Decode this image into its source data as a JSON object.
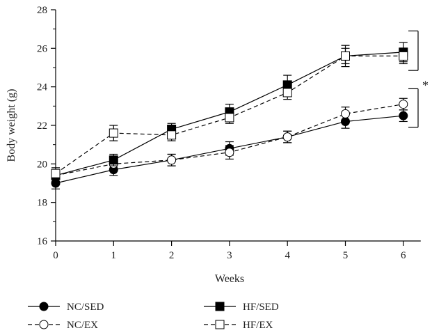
{
  "chart_data": {
    "type": "line",
    "title": "",
    "xlabel": "Weeks",
    "ylabel": "Body weight (g)",
    "x": [
      0,
      1,
      2,
      3,
      4,
      5,
      6
    ],
    "xlim": [
      0,
      6.3
    ],
    "ylim": [
      16,
      28
    ],
    "xticks": [
      "0",
      "1",
      "2",
      "3",
      "4",
      "5",
      "6"
    ],
    "yticks": [
      "16",
      "18",
      "20",
      "22",
      "24",
      "26",
      "28"
    ],
    "grid": false,
    "legend_position": "bottom",
    "series": [
      {
        "name": "NC/SED",
        "marker": "filled-circle",
        "line": "solid",
        "values": [
          19.0,
          19.7,
          20.2,
          20.8,
          21.4,
          22.2,
          22.5
        ],
        "errors": [
          0.3,
          0.3,
          0.3,
          0.35,
          0.3,
          0.35,
          0.3
        ]
      },
      {
        "name": "NC/EX",
        "marker": "open-circle",
        "line": "dashed",
        "values": [
          19.4,
          20.0,
          20.2,
          20.6,
          21.4,
          22.6,
          23.1
        ],
        "errors": [
          0.3,
          0.3,
          0.3,
          0.35,
          0.3,
          0.35,
          0.3
        ]
      },
      {
        "name": "HF/SED",
        "marker": "filled-square",
        "line": "solid",
        "values": [
          19.4,
          20.2,
          21.8,
          22.7,
          24.1,
          25.6,
          25.8
        ],
        "errors": [
          0.3,
          0.3,
          0.3,
          0.4,
          0.5,
          0.55,
          0.5
        ]
      },
      {
        "name": "HF/EX",
        "marker": "open-square",
        "line": "dashed",
        "values": [
          19.5,
          21.6,
          21.5,
          22.4,
          23.7,
          25.6,
          25.6
        ],
        "errors": [
          0.3,
          0.4,
          0.3,
          0.3,
          0.35,
          0.4,
          0.4
        ]
      }
    ],
    "annotations": [
      {
        "type": "bracket",
        "from": 24.85,
        "to": 26.9,
        "label": ""
      },
      {
        "type": "bracket",
        "from": 21.9,
        "to": 23.9,
        "label": ""
      },
      {
        "type": "text",
        "label": "*"
      }
    ]
  }
}
